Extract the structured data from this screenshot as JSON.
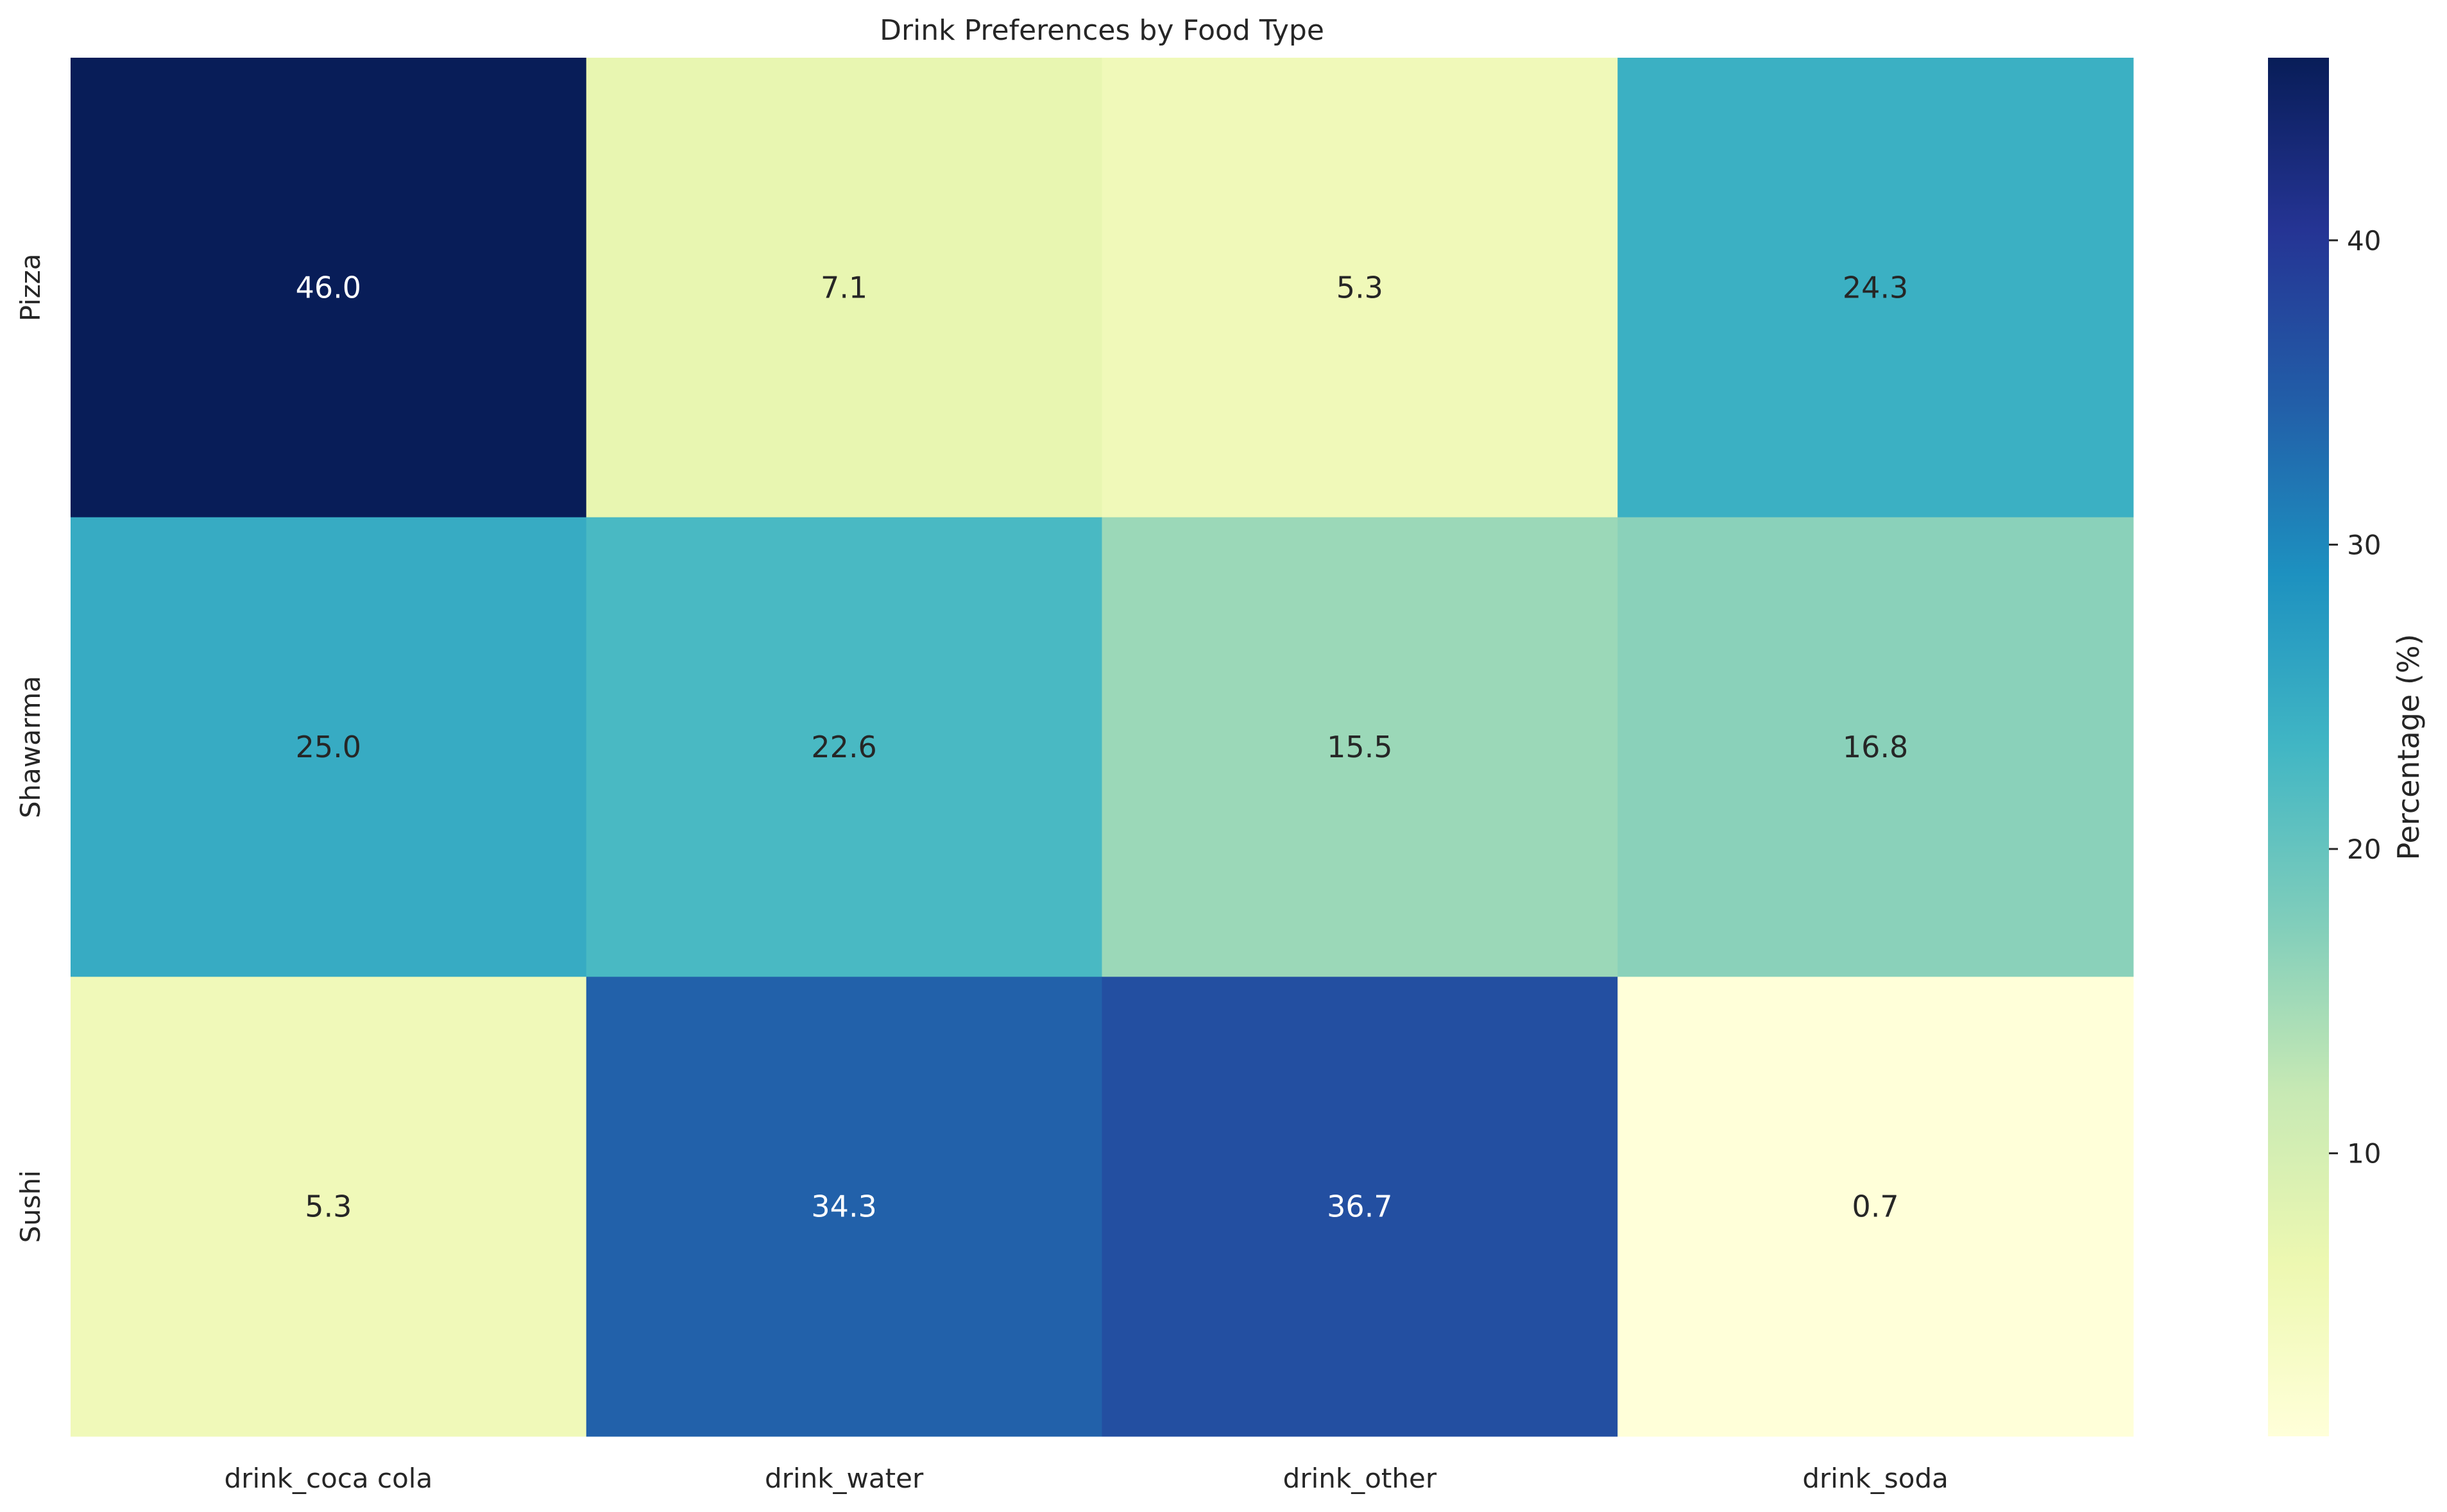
{
  "chart_data": {
    "type": "heatmap",
    "title": "Drink Preferences by Food Type",
    "xlabel": "",
    "ylabel": "",
    "columns": [
      "drink_coca cola",
      "drink_water",
      "drink_other",
      "drink_soda"
    ],
    "rows": [
      "Pizza",
      "Shawarma",
      "Sushi"
    ],
    "values": [
      [
        46.0,
        7.1,
        5.3,
        24.3
      ],
      [
        25.0,
        22.6,
        15.5,
        16.8
      ],
      [
        5.3,
        34.3,
        36.7,
        0.7
      ]
    ],
    "value_format": "0.1f",
    "colormap": "YlGnBu",
    "colorbar": {
      "label": "Percentage (%)",
      "ticks": [
        10,
        20,
        30,
        40
      ],
      "range": [
        0.7,
        46.0
      ]
    },
    "colormap_stops": [
      "#ffffd9",
      "#edf8b1",
      "#c7e9b4",
      "#7fcdbb",
      "#41b6c4",
      "#1d91c0",
      "#225ea8",
      "#253494",
      "#081d58"
    ]
  }
}
